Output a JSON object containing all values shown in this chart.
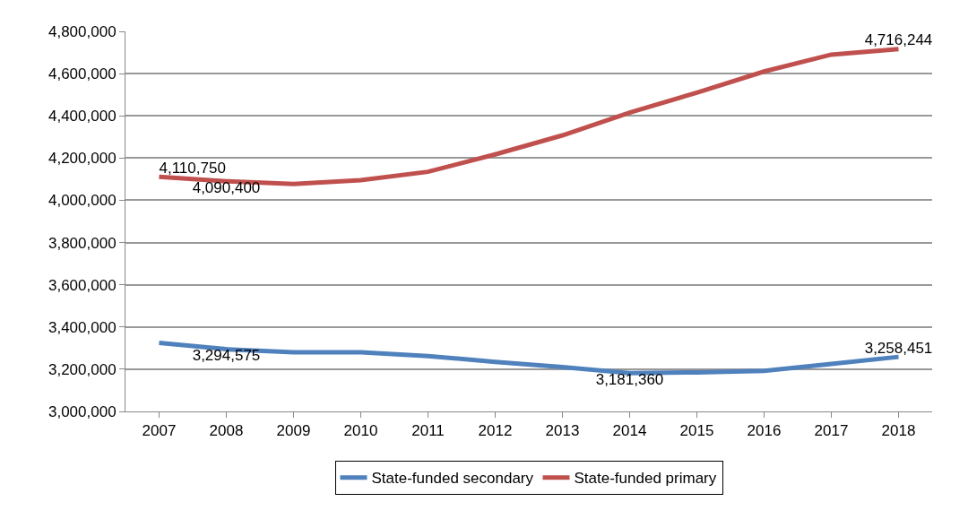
{
  "chart_data": {
    "type": "line",
    "categories": [
      "2007",
      "2008",
      "2009",
      "2010",
      "2011",
      "2012",
      "2013",
      "2014",
      "2015",
      "2016",
      "2017",
      "2018"
    ],
    "series": [
      {
        "name": "State-funded secondary",
        "color": "#4f81bd",
        "values": [
          3325000,
          3294575,
          3280000,
          3280000,
          3262500,
          3235000,
          3210000,
          3181360,
          3185000,
          3192500,
          3225000,
          3258451
        ],
        "value_labels": [
          null,
          "3,294,575",
          null,
          null,
          null,
          null,
          null,
          "3,181,360",
          null,
          null,
          null,
          "3,258,451"
        ]
      },
      {
        "name": "State-funded primary",
        "color": "#c0504d",
        "values": [
          4110750,
          4090400,
          4077500,
          4095000,
          4135000,
          4217500,
          4307500,
          4415000,
          4510000,
          4610000,
          4690000,
          4716244
        ],
        "value_labels": [
          "4,110,750",
          "4,090,400",
          null,
          null,
          null,
          null,
          null,
          null,
          null,
          null,
          null,
          "4,716,244"
        ]
      }
    ],
    "ylim": [
      3000000,
      4800000
    ],
    "yticks": [
      {
        "value": 3000000,
        "label": "3,000,000"
      },
      {
        "value": 3200000,
        "label": "3,200,000"
      },
      {
        "value": 3400000,
        "label": "3,400,000"
      },
      {
        "value": 3600000,
        "label": "3,600,000"
      },
      {
        "value": 3800000,
        "label": "3,800,000"
      },
      {
        "value": 4000000,
        "label": "4,000,000"
      },
      {
        "value": 4200000,
        "label": "4,200,000"
      },
      {
        "value": 4400000,
        "label": "4,400,000"
      },
      {
        "value": 4600000,
        "label": "4,600,000"
      },
      {
        "value": 4800000,
        "label": "4,800,000"
      }
    ],
    "grid": "y",
    "legend": "bottom",
    "marker": "none",
    "line_style": "solid"
  }
}
